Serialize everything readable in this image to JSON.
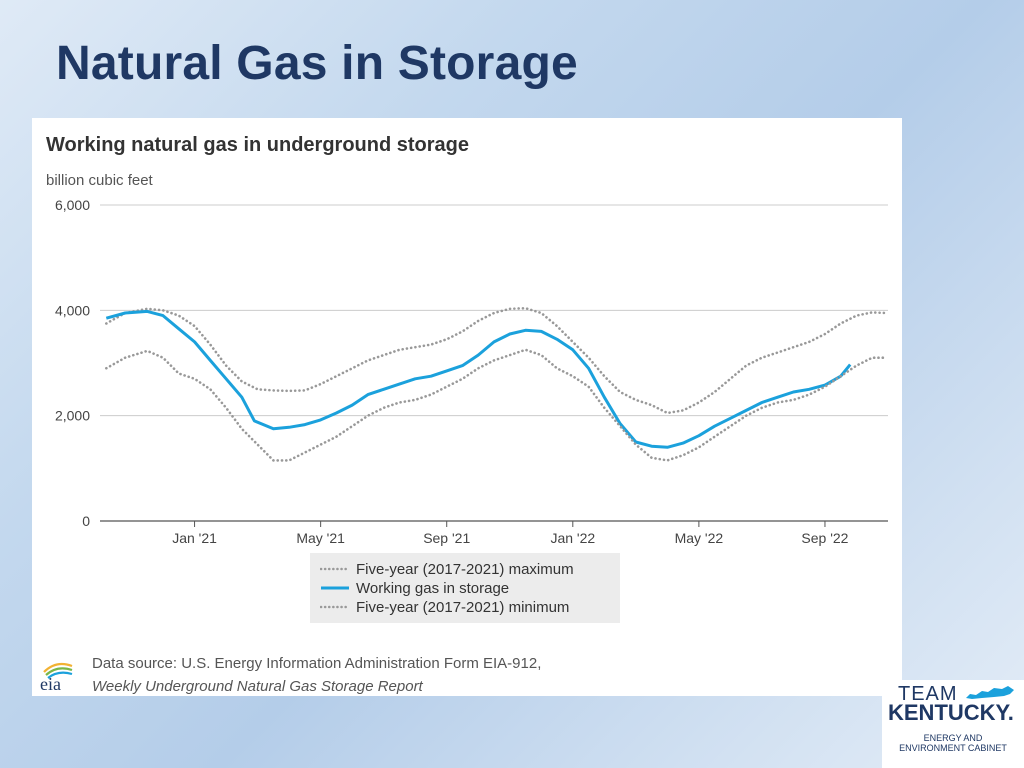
{
  "slide": {
    "title": "Natural Gas in Storage"
  },
  "chart_data": {
    "type": "line",
    "title": "Working natural gas in underground storage",
    "unit_label": "billion cubic feet",
    "xlabel": "",
    "ylabel": "",
    "ylim": [
      0,
      6000
    ],
    "y_ticks": [
      0,
      2000,
      4000,
      6000
    ],
    "y_tick_labels": [
      "0",
      "2,000",
      "4,000",
      "6,000"
    ],
    "x_range": [
      0,
      25
    ],
    "x_ticks": [
      3,
      7,
      11,
      15,
      19,
      23
    ],
    "x_tick_labels": [
      "Jan '21",
      "May '21",
      "Sep '21",
      "Jan '22",
      "May '22",
      "Sep '22"
    ],
    "grid": true,
    "legend_position": "bottom-center",
    "series": [
      {
        "name": "Five-year (2017-2021) maximum",
        "style": "dotted",
        "color": "#999999",
        "x": [
          0.2,
          0.8,
          1.5,
          2.0,
          2.5,
          3.0,
          3.5,
          4.0,
          4.5,
          5.0,
          5.5,
          6.0,
          6.5,
          7.0,
          7.5,
          8.0,
          8.5,
          9.0,
          9.5,
          10.0,
          10.5,
          11.0,
          11.5,
          12.0,
          12.5,
          13.0,
          13.5,
          14.0,
          14.5,
          15.0,
          15.5,
          16.0,
          16.5,
          17.0,
          17.5,
          18.0,
          18.5,
          19.0,
          19.5,
          20.0,
          20.5,
          21.0,
          21.5,
          22.0,
          22.5,
          23.0,
          23.5,
          24.0,
          24.5,
          24.9
        ],
        "values": [
          3750,
          3950,
          4030,
          4000,
          3900,
          3700,
          3350,
          2950,
          2650,
          2500,
          2480,
          2470,
          2480,
          2600,
          2750,
          2900,
          3050,
          3150,
          3250,
          3300,
          3350,
          3450,
          3600,
          3800,
          3950,
          4030,
          4040,
          3950,
          3700,
          3400,
          3100,
          2750,
          2450,
          2300,
          2200,
          2050,
          2100,
          2250,
          2450,
          2700,
          2950,
          3100,
          3200,
          3300,
          3400,
          3550,
          3750,
          3900,
          3960,
          3950
        ]
      },
      {
        "name": "Working gas in storage",
        "style": "solid",
        "color": "#1ba1dc",
        "x": [
          0.2,
          0.8,
          1.5,
          2.0,
          2.5,
          3.0,
          3.5,
          4.0,
          4.5,
          4.9,
          5.5,
          6.0,
          6.5,
          7.0,
          7.5,
          8.0,
          8.5,
          9.0,
          9.5,
          10.0,
          10.5,
          11.0,
          11.5,
          12.0,
          12.5,
          13.0,
          13.5,
          14.0,
          14.5,
          15.0,
          15.5,
          16.0,
          16.5,
          17.0,
          17.5,
          18.0,
          18.5,
          19.0,
          19.5,
          20.0,
          20.5,
          21.0,
          21.5,
          22.0,
          22.5,
          23.0,
          23.5,
          23.8
        ],
        "values": [
          3850,
          3950,
          3980,
          3900,
          3650,
          3400,
          3050,
          2700,
          2350,
          1900,
          1750,
          1780,
          1830,
          1920,
          2050,
          2200,
          2400,
          2500,
          2600,
          2700,
          2750,
          2850,
          2950,
          3150,
          3400,
          3550,
          3620,
          3600,
          3450,
          3250,
          2900,
          2350,
          1850,
          1500,
          1420,
          1400,
          1480,
          1620,
          1800,
          1950,
          2100,
          2250,
          2350,
          2450,
          2500,
          2580,
          2750,
          2970
        ]
      },
      {
        "name": "Five-year (2017-2021) minimum",
        "style": "dotted",
        "color": "#999999",
        "x": [
          0.2,
          0.8,
          1.5,
          2.0,
          2.5,
          3.0,
          3.5,
          4.0,
          4.5,
          5.0,
          5.5,
          6.0,
          6.5,
          7.0,
          7.5,
          8.0,
          8.5,
          9.0,
          9.5,
          10.0,
          10.5,
          11.0,
          11.5,
          12.0,
          12.5,
          13.0,
          13.5,
          14.0,
          14.5,
          15.0,
          15.5,
          16.0,
          16.5,
          17.0,
          17.5,
          18.0,
          18.5,
          19.0,
          19.5,
          20.0,
          20.5,
          21.0,
          21.5,
          22.0,
          22.5,
          23.0,
          23.5,
          24.0,
          24.5,
          24.9
        ],
        "values": [
          2900,
          3100,
          3230,
          3100,
          2800,
          2700,
          2500,
          2150,
          1750,
          1450,
          1150,
          1150,
          1300,
          1450,
          1600,
          1800,
          2000,
          2150,
          2250,
          2300,
          2400,
          2550,
          2700,
          2900,
          3050,
          3150,
          3250,
          3150,
          2900,
          2750,
          2550,
          2150,
          1800,
          1450,
          1200,
          1150,
          1250,
          1400,
          1600,
          1800,
          2000,
          2150,
          2250,
          2300,
          2400,
          2550,
          2750,
          2950,
          3100,
          3100
        ]
      }
    ],
    "legend": [
      "Five-year (2017-2021) maximum",
      "Working gas in storage",
      "Five-year (2017-2021) minimum"
    ],
    "source_line1": "Data source: U.S. Energy Information Administration Form EIA-912,",
    "source_line2": "Weekly Underground Natural Gas Storage Report",
    "source_logo_text": "eia"
  },
  "brand": {
    "team": "TEAM",
    "kentucky": "KENTUCKY.",
    "sub1": "ENERGY AND",
    "sub2": "ENVIRONMENT CABINET"
  },
  "colors": {
    "title": "#1f3864",
    "series_blue": "#1ba1dc",
    "range_dots": "#999999"
  }
}
